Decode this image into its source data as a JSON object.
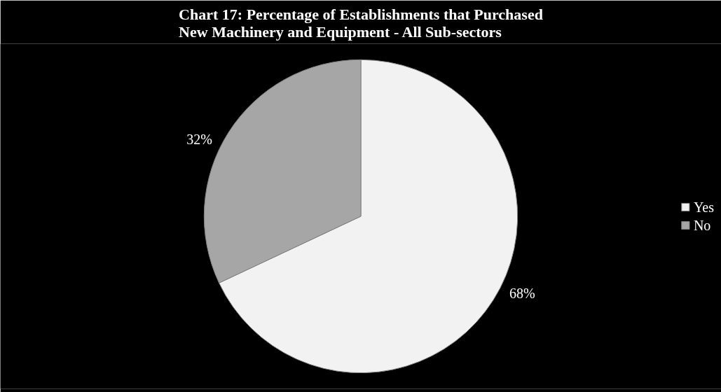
{
  "chart_data": {
    "type": "pie",
    "title": "Chart 17: Percentage of Establishments that Purchased New Machinery and Equipment - All Sub-sectors",
    "categories": [
      "Yes",
      "No"
    ],
    "values": [
      68,
      32
    ],
    "colors": [
      "#f2f2f2",
      "#a6a6a6"
    ],
    "value_labels": [
      "68%",
      "32%"
    ],
    "legend": "right"
  }
}
